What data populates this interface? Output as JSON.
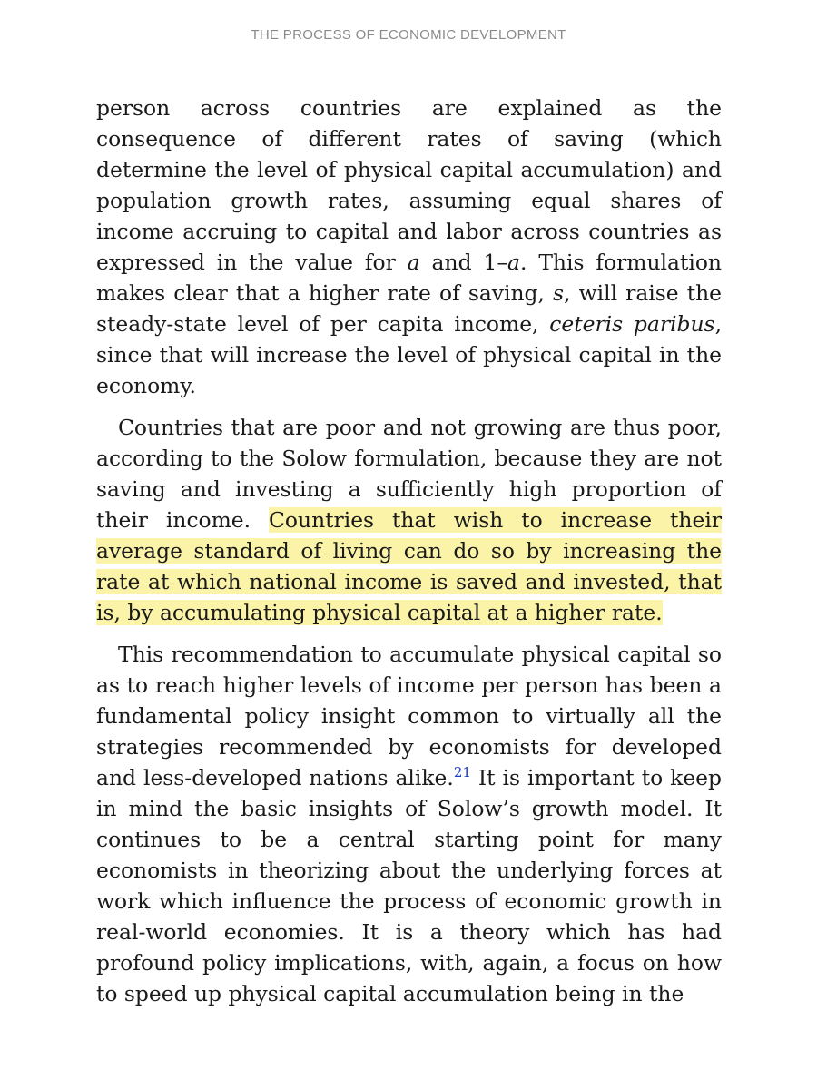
{
  "header": {
    "running_title": "THE PROCESS OF ECONOMIC DEVELOPMENT"
  },
  "paragraphs": [
    {
      "p1_a": "person across countries are explained as the consequence of different rates of saving (which determine the level of physical capital accumulation) and population growth rates, assuming equal shares of income accruing to capital and labor across countries as expressed in the value for ",
      "p1_var_a1": "a",
      "p1_b": " and 1–",
      "p1_var_a2": "a",
      "p1_c": ". This formulation makes clear that a higher rate of saving, ",
      "p1_var_s": "s",
      "p1_d": ", will raise the steady-state level of per capita income, ",
      "p1_latin": "ceteris paribus",
      "p1_e": ", since that will increase the level of physical capital in the economy."
    },
    {
      "p2_a": "Countries that are poor and not growing are thus poor, according to the Solow formulation, because they are not saving and investing a sufficiently high proportion of their income. ",
      "p2_highlight": "Countries that wish to increase their average standard of living can do so by increasing the rate at which national income is saved and invested, that is, by accumulating physical capital at a higher rate."
    },
    {
      "p3_a": "This recommendation to accumulate physical capital so as to reach higher levels of income per person has been a fundamental policy insight common to virtually all the strategies recommended by economists for developed and less-developed nations alike.",
      "p3_footnote": "21",
      "p3_b": " It is important to keep in mind the basic insights of Solow’s growth model. It continues to be a central starting point for many economists in theorizing about the underlying forces at work which influence the process of economic growth in real-world economies. It is a theory which has had profound policy implications, with, again, a focus on how to speed up physical capital accumulation being in the"
    }
  ],
  "colors": {
    "highlight": "#fbf4a8",
    "footnote_link": "#1a3cc8",
    "header_text": "#8a8a8a",
    "body_text": "#1a1a1a"
  }
}
